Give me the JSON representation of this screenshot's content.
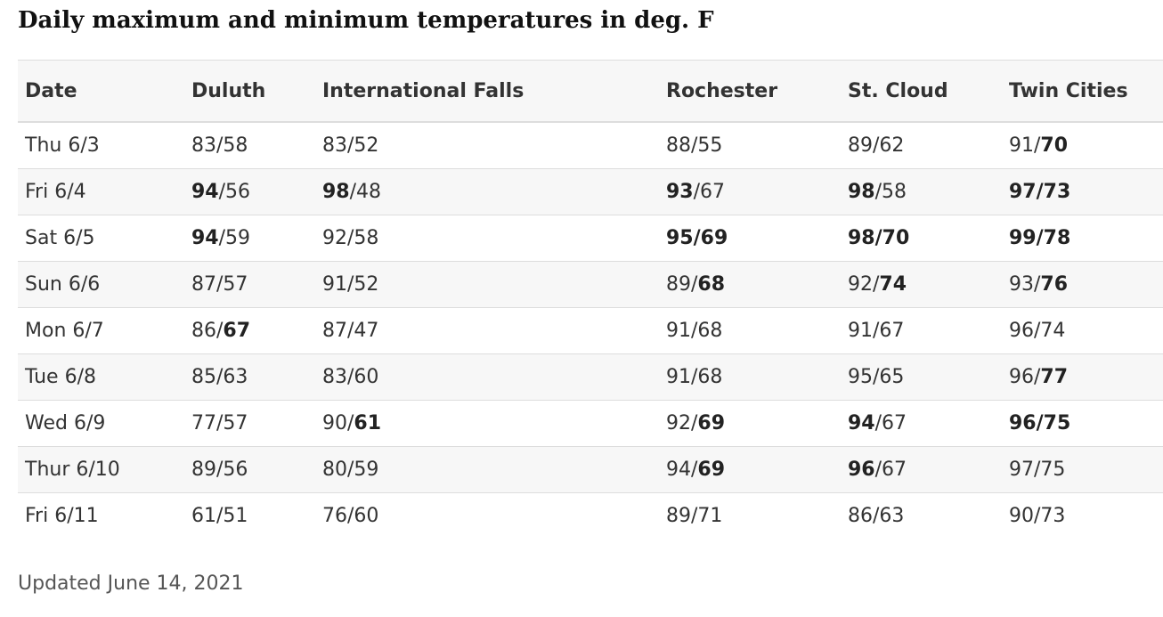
{
  "title": "Daily maximum and minimum temperatures in deg. F",
  "table": {
    "header": [
      "Date",
      "Duluth",
      "International Falls",
      "Rochester",
      "St. Cloud",
      "Twin Cities"
    ],
    "rows": [
      [
        "Thu 6/3",
        [
          {
            "text": "83/58"
          }
        ],
        [
          {
            "text": "83/52"
          }
        ],
        [
          {
            "text": "88/55"
          }
        ],
        [
          {
            "text": "89/62"
          }
        ],
        [
          {
            "text": "91/"
          },
          {
            "text": "70",
            "bold": true
          }
        ]
      ],
      [
        "Fri 6/4",
        [
          {
            "text": "94",
            "bold": true
          },
          {
            "text": "/56"
          }
        ],
        [
          {
            "text": "98",
            "bold": true
          },
          {
            "text": "/48"
          }
        ],
        [
          {
            "text": "93",
            "bold": true
          },
          {
            "text": "/67"
          }
        ],
        [
          {
            "text": "98",
            "bold": true
          },
          {
            "text": "/58"
          }
        ],
        [
          {
            "text": "97/73",
            "bold": true
          }
        ]
      ],
      [
        "Sat 6/5",
        [
          {
            "text": "94",
            "bold": true
          },
          {
            "text": "/59"
          }
        ],
        [
          {
            "text": "92/58"
          }
        ],
        [
          {
            "text": "95/69",
            "bold": true
          }
        ],
        [
          {
            "text": "98/70",
            "bold": true
          }
        ],
        [
          {
            "text": "99/78",
            "bold": true
          }
        ]
      ],
      [
        "Sun 6/6",
        [
          {
            "text": "87/57"
          }
        ],
        [
          {
            "text": "91/52"
          }
        ],
        [
          {
            "text": "89/"
          },
          {
            "text": "68",
            "bold": true
          }
        ],
        [
          {
            "text": "92/"
          },
          {
            "text": "74",
            "bold": true
          }
        ],
        [
          {
            "text": "93/"
          },
          {
            "text": "76",
            "bold": true
          }
        ]
      ],
      [
        "Mon 6/7",
        [
          {
            "text": "86/"
          },
          {
            "text": "67",
            "bold": true
          }
        ],
        [
          {
            "text": "87/47"
          }
        ],
        [
          {
            "text": "91/68"
          }
        ],
        [
          {
            "text": "91/67"
          }
        ],
        [
          {
            "text": "96/74"
          }
        ]
      ],
      [
        "Tue 6/8",
        [
          {
            "text": "85/63"
          }
        ],
        [
          {
            "text": "83/60"
          }
        ],
        [
          {
            "text": "91/68"
          }
        ],
        [
          {
            "text": "95/65"
          }
        ],
        [
          {
            "text": "96/"
          },
          {
            "text": "77",
            "bold": true
          }
        ]
      ],
      [
        "Wed 6/9",
        [
          {
            "text": "77/57"
          }
        ],
        [
          {
            "text": "90/"
          },
          {
            "text": "61",
            "bold": true
          }
        ],
        [
          {
            "text": "92/"
          },
          {
            "text": "69",
            "bold": true
          }
        ],
        [
          {
            "text": "94",
            "bold": true
          },
          {
            "text": "/67"
          }
        ],
        [
          {
            "text": "96/75",
            "bold": true
          }
        ]
      ],
      [
        "Thur 6/10",
        [
          {
            "text": "89/56"
          }
        ],
        [
          {
            "text": "80/59"
          }
        ],
        [
          {
            "text": "94/"
          },
          {
            "text": "69",
            "bold": true
          }
        ],
        [
          {
            "text": "96",
            "bold": true
          },
          {
            "text": "/67"
          }
        ],
        [
          {
            "text": "97/75"
          }
        ]
      ],
      [
        "Fri 6/11",
        [
          {
            "text": "61/51"
          }
        ],
        [
          {
            "text": "76/60"
          }
        ],
        [
          {
            "text": "89/71"
          }
        ],
        [
          {
            "text": "86/63"
          }
        ],
        [
          {
            "text": "90/73"
          }
        ]
      ]
    ]
  },
  "footer": "Updated June 14, 2021"
}
